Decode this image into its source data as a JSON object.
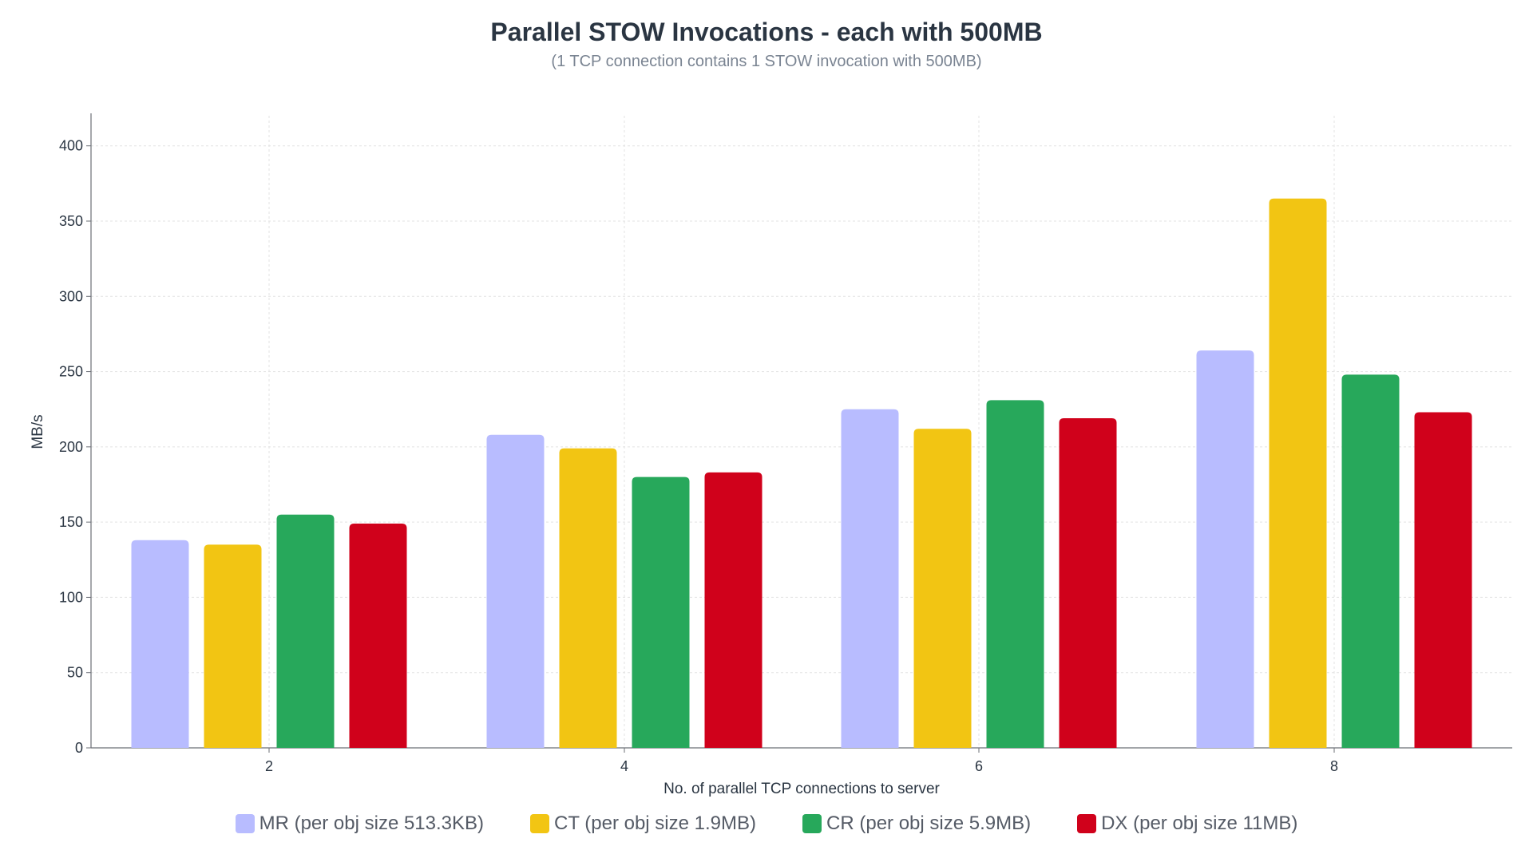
{
  "chart_data": {
    "type": "bar",
    "title": "Parallel STOW Invocations - each with 500MB",
    "subtitle": "(1 TCP connection contains 1 STOW invocation with 500MB)",
    "xlabel": "No. of parallel TCP connections to server",
    "ylabel": "MB/s",
    "ylim": [
      0,
      420
    ],
    "yticks": [
      0,
      50,
      100,
      150,
      200,
      250,
      300,
      350,
      400
    ],
    "categories": [
      "2",
      "4",
      "6",
      "8"
    ],
    "grid": true,
    "legend_position": "bottom",
    "series": [
      {
        "name": "MR (per obj size 513.3KB)",
        "color": "#b8bcff",
        "values": [
          138,
          208,
          225,
          264
        ]
      },
      {
        "name": "CT (per obj size 1.9MB)",
        "color": "#f2c513",
        "values": [
          135,
          199,
          212,
          365
        ]
      },
      {
        "name": "CR (per obj size 5.9MB)",
        "color": "#27a85b",
        "values": [
          155,
          180,
          231,
          248
        ]
      },
      {
        "name": "DX (per obj size 11MB)",
        "color": "#d0011b",
        "values": [
          149,
          183,
          219,
          223
        ]
      }
    ]
  },
  "colors": {
    "axis": "#6b6f76",
    "grid": "#e3e3e3",
    "text": "#2a3542",
    "muted": "#7a8492"
  }
}
